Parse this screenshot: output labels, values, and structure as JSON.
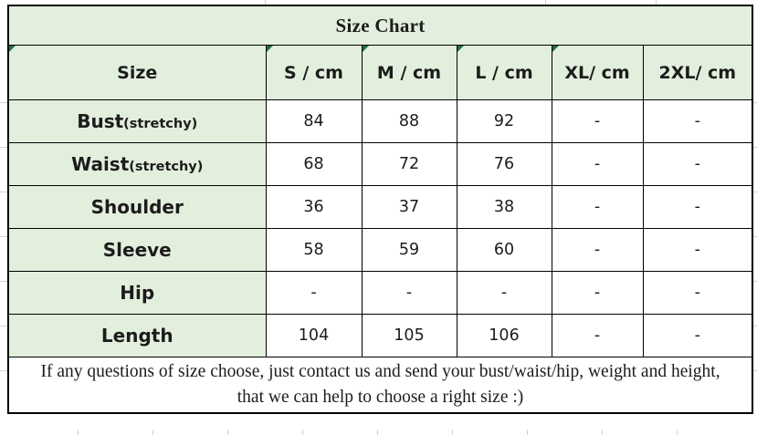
{
  "chart_data": {
    "type": "table",
    "title": "Size Chart",
    "columns": [
      "Size",
      "S / cm",
      "M / cm",
      "L / cm",
      "XL/ cm",
      "2XL/ cm"
    ],
    "rows": [
      {
        "label": "Bust",
        "suffix": "(stretchy)",
        "values": [
          "84",
          "88",
          "92",
          "-",
          "-"
        ]
      },
      {
        "label": "Waist",
        "suffix": "(stretchy)",
        "values": [
          "68",
          "72",
          "76",
          "-",
          "-"
        ]
      },
      {
        "label": "Shoulder",
        "suffix": "",
        "values": [
          "36",
          "37",
          "38",
          "-",
          "-"
        ]
      },
      {
        "label": "Sleeve",
        "suffix": "",
        "values": [
          "58",
          "59",
          "60",
          "-",
          "-"
        ]
      },
      {
        "label": "Hip",
        "suffix": "",
        "values": [
          "-",
          "-",
          "-",
          "-",
          "-"
        ]
      },
      {
        "label": "Length",
        "suffix": "",
        "values": [
          "104",
          "105",
          "106",
          "-",
          "-"
        ]
      }
    ],
    "header_corner_markers": [
      true,
      true,
      true,
      true,
      true,
      false
    ],
    "layout": {
      "grid": "on",
      "header_fill": "light-green",
      "value_fill": "white"
    }
  },
  "footer": {
    "line1": "If any questions of size choose, just contact us and send your bust/waist/hip, weight and height,",
    "line2": "that we can help to choose a right size :)"
  },
  "icons": {
    "corner_marker": "excel-corner-marker-icon"
  },
  "colors": {
    "cell_fill": "#E3EFDD",
    "border": "#000000",
    "corner_marker": "#1F7145",
    "text": "#1C1C1C"
  }
}
